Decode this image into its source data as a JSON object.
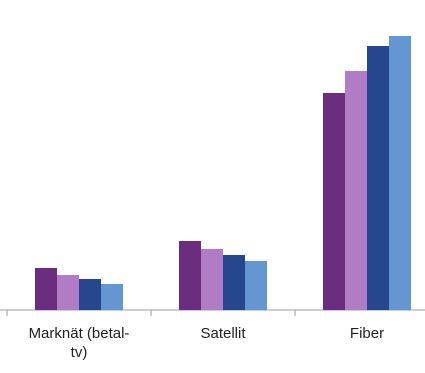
{
  "chart_data": {
    "type": "bar",
    "categories": [
      "Marknät (betal-\ntv)",
      "Satellit",
      "Fiber"
    ],
    "series": [
      {
        "color": "#6b2d7e",
        "values": [
          42,
          69,
          217
        ]
      },
      {
        "color": "#b07cc6",
        "values": [
          35,
          61,
          239
        ]
      },
      {
        "color": "#26478d",
        "values": [
          31,
          55,
          264
        ]
      },
      {
        "color": "#6497d2",
        "values": [
          26,
          49,
          274
        ]
      }
    ],
    "ylim": [
      0,
      280
    ]
  }
}
